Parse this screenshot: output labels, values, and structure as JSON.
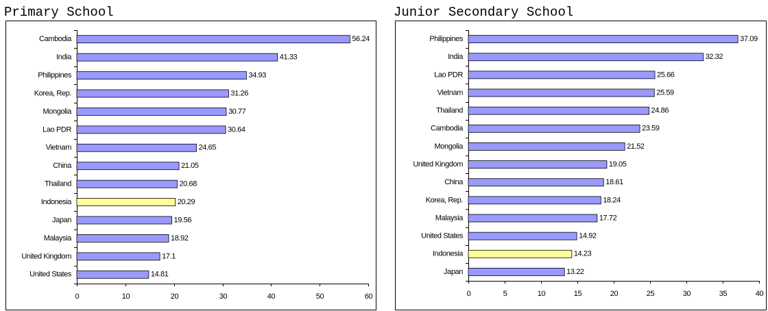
{
  "chart_data": [
    {
      "type": "bar",
      "orientation": "horizontal",
      "title": "Primary School",
      "categories": [
        "Cambodia",
        "India",
        "Philippines",
        "Korea, Rep.",
        "Mongolia",
        "Lao PDR",
        "Vietnam",
        "China",
        "Thailand",
        "Indonesia",
        "Japan",
        "Malaysia",
        "United Kingdom",
        "United States"
      ],
      "values": [
        56.24,
        41.33,
        34.93,
        31.26,
        30.77,
        30.64,
        24.65,
        21.05,
        20.68,
        20.29,
        19.56,
        18.92,
        17.1,
        14.81
      ],
      "colors": [
        "#9999ff",
        "#9999ff",
        "#9999ff",
        "#9999ff",
        "#9999ff",
        "#9999ff",
        "#9999ff",
        "#9999ff",
        "#9999ff",
        "#ffff99",
        "#9999ff",
        "#9999ff",
        "#9999ff",
        "#9999ff"
      ],
      "xlim": [
        0,
        60
      ],
      "xticks": [
        0,
        10,
        20,
        30,
        40,
        50,
        60
      ]
    },
    {
      "type": "bar",
      "orientation": "horizontal",
      "title": "Junior Secondary School",
      "categories": [
        "Philippines",
        "India",
        "Lao PDR",
        "Vietnam",
        "Thailand",
        "Cambodia",
        "Mongolia",
        "United Kingdom",
        "China",
        "Korea, Rep.",
        "Malaysia",
        "United States",
        "Indonesia",
        "Japan"
      ],
      "values": [
        37.09,
        32.32,
        25.66,
        25.59,
        24.86,
        23.59,
        21.52,
        19.05,
        18.61,
        18.24,
        17.72,
        14.92,
        14.23,
        13.22
      ],
      "colors": [
        "#9999ff",
        "#9999ff",
        "#9999ff",
        "#9999ff",
        "#9999ff",
        "#9999ff",
        "#9999ff",
        "#9999ff",
        "#9999ff",
        "#9999ff",
        "#9999ff",
        "#9999ff",
        "#ffff99",
        "#9999ff"
      ],
      "xlim": [
        0,
        40
      ],
      "xticks": [
        0,
        5,
        10,
        15,
        20,
        25,
        30,
        35,
        40
      ]
    }
  ]
}
